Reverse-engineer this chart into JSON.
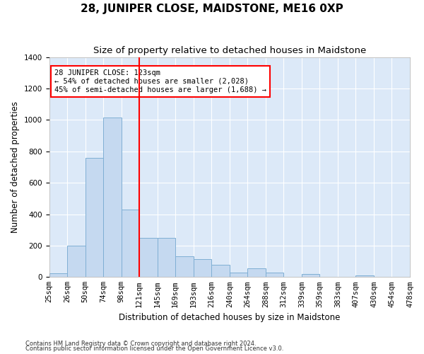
{
  "title": "28, JUNIPER CLOSE, MAIDSTONE, ME16 0XP",
  "subtitle": "Size of property relative to detached houses in Maidstone",
  "xlabel": "Distribution of detached houses by size in Maidstone",
  "ylabel": "Number of detached properties",
  "footnote1": "Contains HM Land Registry data © Crown copyright and database right 2024.",
  "footnote2": "Contains public sector information licensed under the Open Government Licence v3.0.",
  "bar_values": [
    25,
    200,
    760,
    1015,
    430,
    250,
    250,
    130,
    115,
    80,
    30,
    55,
    30,
    0,
    20,
    0,
    0,
    10,
    0,
    0
  ],
  "bar_color": "#c5d9f0",
  "bar_edge_color": "#7fafd4",
  "property_line_x": 5,
  "property_line_color": "red",
  "annotation_text": "28 JUNIPER CLOSE: 123sqm\n← 54% of detached houses are smaller (2,028)\n45% of semi-detached houses are larger (1,688) →",
  "annotation_box_color": "white",
  "annotation_box_edge_color": "red",
  "ylim": [
    0,
    1400
  ],
  "xtick_labels": [
    "25sqm",
    "26sqm",
    "50sqm",
    "74sqm",
    "98sqm",
    "121sqm",
    "145sqm",
    "169sqm",
    "193sqm",
    "216sqm",
    "240sqm",
    "264sqm",
    "288sqm",
    "312sqm",
    "339sqm",
    "359sqm",
    "383sqm",
    "407sqm",
    "430sqm",
    "454sqm",
    "478sqm"
  ],
  "background_color": "#dce9f8",
  "grid_color": "white",
  "title_fontsize": 11,
  "subtitle_fontsize": 9.5,
  "axis_label_fontsize": 8.5,
  "tick_fontsize": 7.5
}
